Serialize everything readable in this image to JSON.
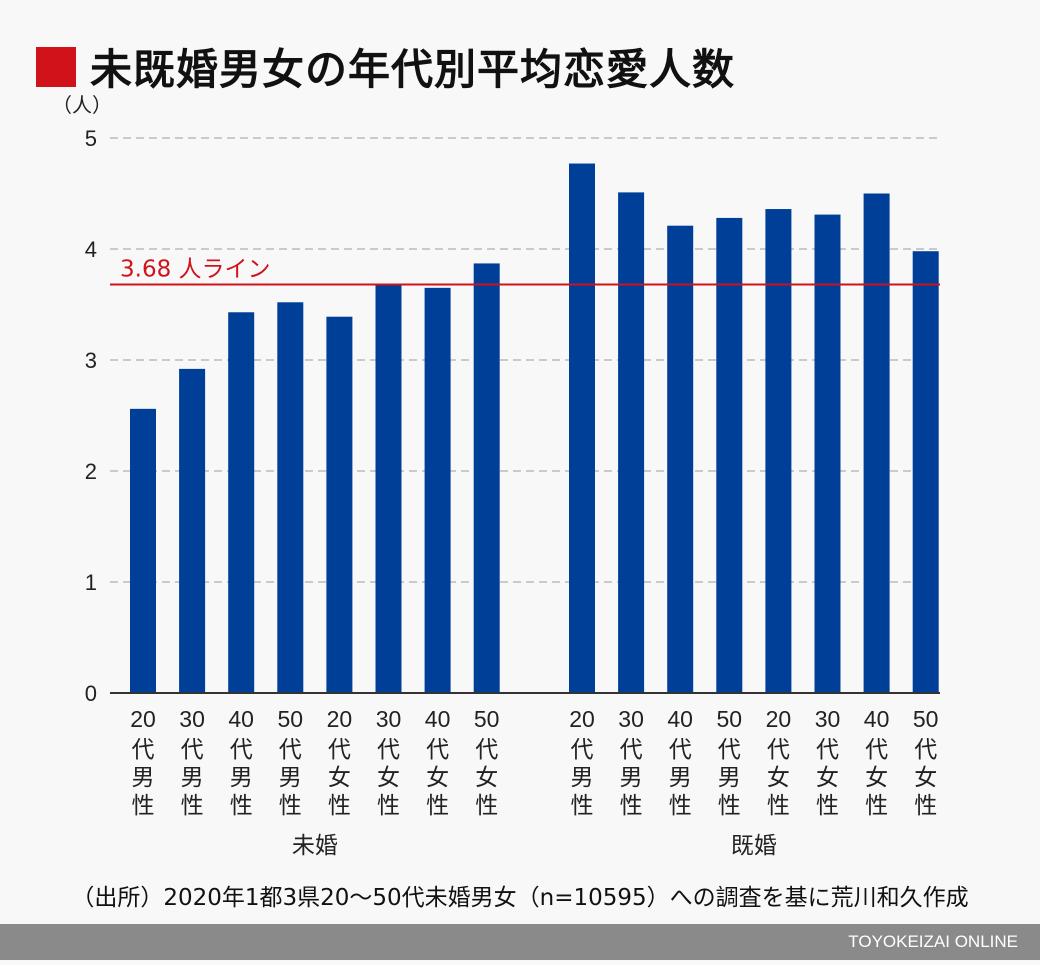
{
  "title": "未既婚男女の年代別平均恋愛人数",
  "source": "（出所）2020年1都3県20〜50代未婚男女（n=10595）への調査を基に荒川和久作成",
  "brand": "TOYOKEIZAI ONLINE",
  "colors": {
    "bar": "#003f98",
    "reference_line": "#d0121b",
    "title_mark": "#d0121b"
  },
  "chart_data": {
    "type": "bar",
    "ylabel": "（人）",
    "ylim": [
      0,
      5
    ],
    "yticks": [
      0,
      1,
      2,
      3,
      4,
      5
    ],
    "grid": true,
    "groups": [
      {
        "label": "未婚",
        "categories": [
          {
            "num": "20",
            "chars": [
              "代",
              "男",
              "性"
            ]
          },
          {
            "num": "30",
            "chars": [
              "代",
              "男",
              "性"
            ]
          },
          {
            "num": "40",
            "chars": [
              "代",
              "男",
              "性"
            ]
          },
          {
            "num": "50",
            "chars": [
              "代",
              "男",
              "性"
            ]
          },
          {
            "num": "20",
            "chars": [
              "代",
              "女",
              "性"
            ]
          },
          {
            "num": "30",
            "chars": [
              "代",
              "女",
              "性"
            ]
          },
          {
            "num": "40",
            "chars": [
              "代",
              "女",
              "性"
            ]
          },
          {
            "num": "50",
            "chars": [
              "代",
              "女",
              "性"
            ]
          }
        ],
        "values": [
          2.56,
          2.92,
          3.43,
          3.52,
          3.39,
          3.68,
          3.65,
          3.87
        ]
      },
      {
        "label": "既婚",
        "categories": [
          {
            "num": "20",
            "chars": [
              "代",
              "男",
              "性"
            ]
          },
          {
            "num": "30",
            "chars": [
              "代",
              "男",
              "性"
            ]
          },
          {
            "num": "40",
            "chars": [
              "代",
              "男",
              "性"
            ]
          },
          {
            "num": "50",
            "chars": [
              "代",
              "男",
              "性"
            ]
          },
          {
            "num": "20",
            "chars": [
              "代",
              "女",
              "性"
            ]
          },
          {
            "num": "30",
            "chars": [
              "代",
              "女",
              "性"
            ]
          },
          {
            "num": "40",
            "chars": [
              "代",
              "女",
              "性"
            ]
          },
          {
            "num": "50",
            "chars": [
              "代",
              "女",
              "性"
            ]
          }
        ],
        "values": [
          4.77,
          4.51,
          4.21,
          4.28,
          4.36,
          4.31,
          4.5,
          3.98
        ]
      }
    ],
    "reference_line": {
      "value": 3.68,
      "label": "3.68 人ライン"
    }
  }
}
